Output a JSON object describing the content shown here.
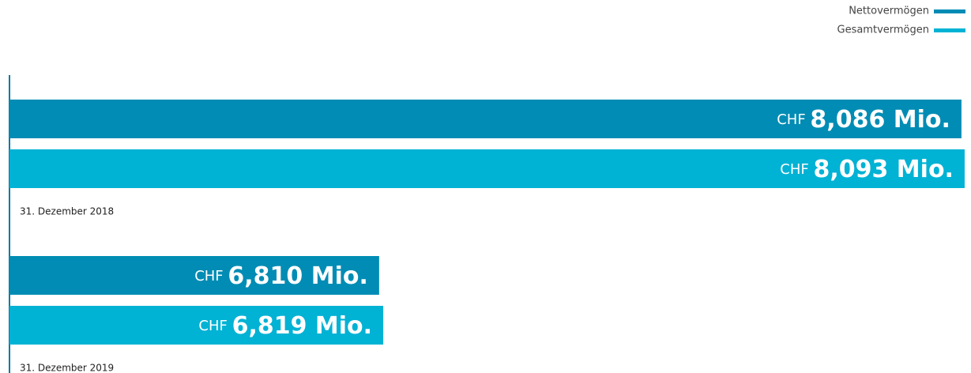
{
  "chart_data": {
    "type": "bar",
    "orientation": "horizontal",
    "categories": [
      "31. Dezember 2018",
      "31. Dezember 2019"
    ],
    "series": [
      {
        "name": "Nettovermögen",
        "color": "#008cb4",
        "values": [
          8086,
          6810
        ],
        "value_labels": [
          "CHF 8,086 Mio.",
          "CHF 6,810 Mio."
        ]
      },
      {
        "name": "Gesamtvermögen",
        "color": "#00b2d4",
        "values": [
          8093,
          6819
        ],
        "value_labels": [
          "CHF 8,093 Mio.",
          "CHF 6,819 Mio."
        ]
      }
    ],
    "xlim": [
      6000,
      8100
    ],
    "legend": "top-right"
  }
}
